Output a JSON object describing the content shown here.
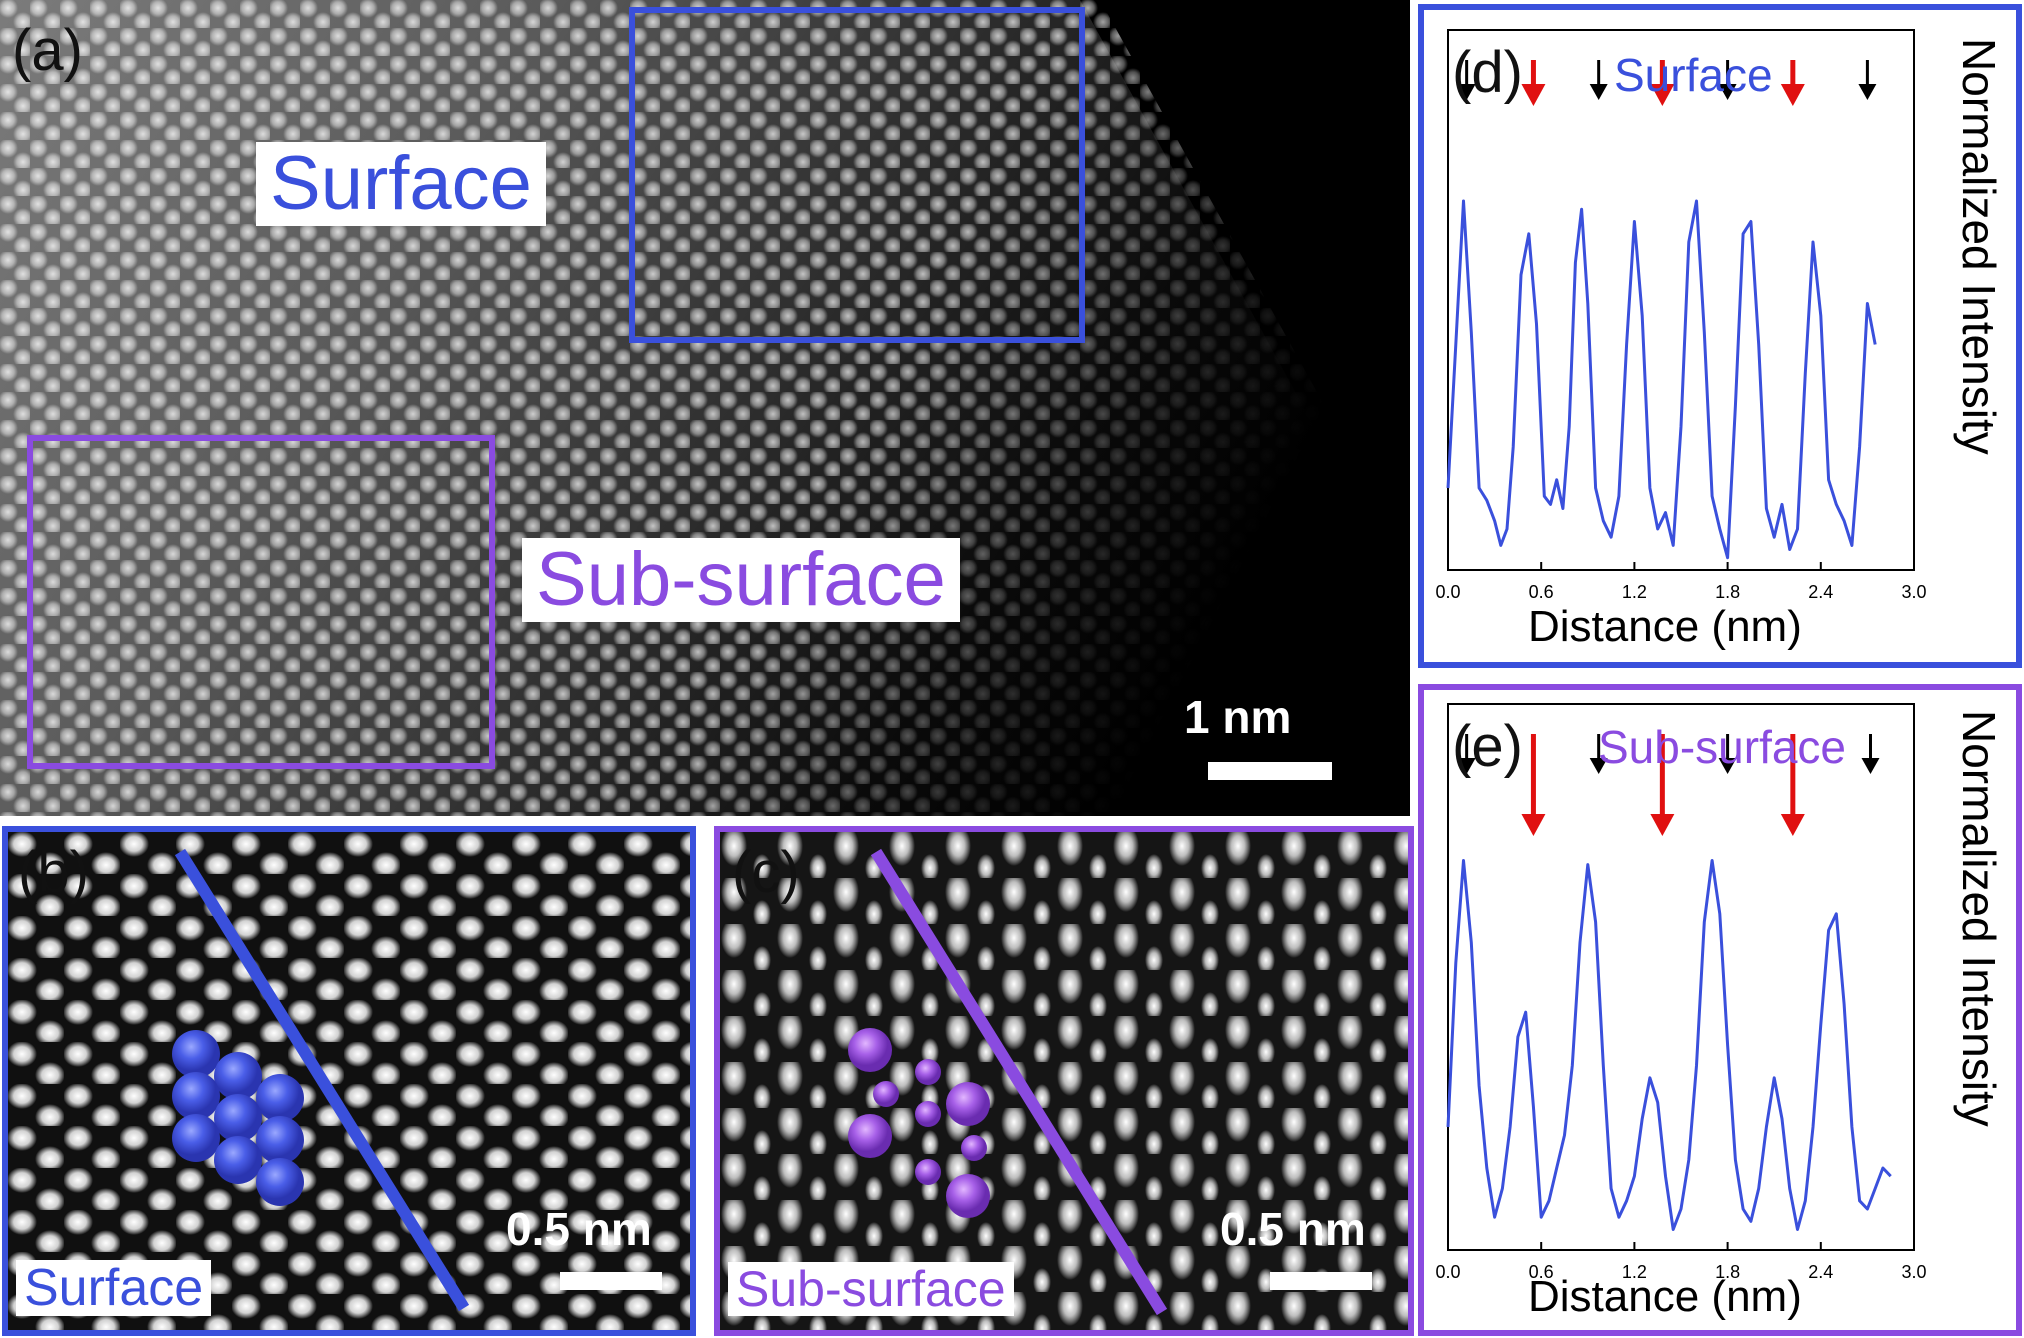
{
  "figure": {
    "panel_a": {
      "label": "(a)",
      "surface_tag": "Surface",
      "subsurface_tag": "Sub-surface",
      "scale": "1 nm"
    },
    "panel_b": {
      "label": "(b)",
      "caption": "Surface",
      "scale": "0.5 nm"
    },
    "panel_c": {
      "label": "(c)",
      "caption": "Sub-surface",
      "scale": "0.5 nm"
    },
    "colors": {
      "surface": "#3a50dc",
      "subsurface": "#8a4be0",
      "peak_arrow_major": "#000000",
      "peak_arrow_minor": "#e01010"
    }
  },
  "chart_data": [
    {
      "type": "line",
      "label": "(d)",
      "title": "Surface",
      "xlabel": "Distance (nm)",
      "ylabel": "Normalized Intensity",
      "xlim": [
        0.0,
        3.0
      ],
      "ylim": [
        0,
        1
      ],
      "xticks": [
        "0.0",
        "0.6",
        "1.2",
        "1.8",
        "2.4",
        "3.0"
      ],
      "series": [
        {
          "color": "#3a50dc",
          "x": [
            0.0,
            0.05,
            0.1,
            0.15,
            0.2,
            0.25,
            0.3,
            0.34,
            0.38,
            0.42,
            0.47,
            0.52,
            0.57,
            0.62,
            0.66,
            0.7,
            0.74,
            0.78,
            0.82,
            0.86,
            0.9,
            0.95,
            1.0,
            1.05,
            1.1,
            1.15,
            1.2,
            1.25,
            1.3,
            1.35,
            1.4,
            1.45,
            1.5,
            1.55,
            1.6,
            1.65,
            1.7,
            1.75,
            1.8,
            1.85,
            1.9,
            1.95,
            2.0,
            2.05,
            2.1,
            2.15,
            2.2,
            2.25,
            2.3,
            2.35,
            2.4,
            2.45,
            2.5,
            2.55,
            2.6,
            2.65,
            2.7,
            2.75
          ],
          "y": [
            0.2,
            0.55,
            0.9,
            0.58,
            0.2,
            0.17,
            0.12,
            0.06,
            0.1,
            0.3,
            0.72,
            0.82,
            0.6,
            0.18,
            0.16,
            0.22,
            0.15,
            0.35,
            0.75,
            0.88,
            0.65,
            0.2,
            0.12,
            0.08,
            0.18,
            0.55,
            0.85,
            0.62,
            0.2,
            0.1,
            0.14,
            0.06,
            0.35,
            0.8,
            0.9,
            0.58,
            0.18,
            0.1,
            0.03,
            0.4,
            0.82,
            0.85,
            0.55,
            0.15,
            0.08,
            0.16,
            0.05,
            0.1,
            0.48,
            0.8,
            0.62,
            0.22,
            0.16,
            0.12,
            0.06,
            0.3,
            0.65,
            0.55
          ]
        }
      ],
      "arrows": {
        "major_x": [
          0.12,
          0.97,
          1.8,
          2.7
        ],
        "minor_x": [
          0.55,
          1.38,
          2.22
        ]
      }
    },
    {
      "type": "line",
      "label": "(e)",
      "title": "Sub-surface",
      "xlabel": "Distance (nm)",
      "ylabel": "Normalized Intensity",
      "xlim": [
        0.0,
        3.0
      ],
      "ylim": [
        0,
        1
      ],
      "xticks": [
        "0.0",
        "0.6",
        "1.2",
        "1.8",
        "2.4",
        "3.0"
      ],
      "series": [
        {
          "color": "#3a50dc",
          "x": [
            0.0,
            0.05,
            0.1,
            0.15,
            0.2,
            0.25,
            0.3,
            0.35,
            0.4,
            0.45,
            0.5,
            0.55,
            0.6,
            0.65,
            0.7,
            0.75,
            0.8,
            0.85,
            0.9,
            0.95,
            1.0,
            1.05,
            1.1,
            1.15,
            1.2,
            1.25,
            1.3,
            1.35,
            1.4,
            1.45,
            1.5,
            1.55,
            1.6,
            1.65,
            1.7,
            1.75,
            1.8,
            1.85,
            1.9,
            1.95,
            2.0,
            2.05,
            2.1,
            2.15,
            2.2,
            2.25,
            2.3,
            2.35,
            2.4,
            2.45,
            2.5,
            2.55,
            2.6,
            2.65,
            2.7,
            2.75,
            2.8,
            2.85
          ],
          "y": [
            0.3,
            0.7,
            0.95,
            0.75,
            0.4,
            0.2,
            0.08,
            0.15,
            0.3,
            0.52,
            0.58,
            0.35,
            0.08,
            0.12,
            0.2,
            0.28,
            0.45,
            0.75,
            0.94,
            0.8,
            0.45,
            0.15,
            0.08,
            0.12,
            0.18,
            0.32,
            0.42,
            0.36,
            0.18,
            0.05,
            0.1,
            0.22,
            0.45,
            0.8,
            0.95,
            0.82,
            0.5,
            0.22,
            0.1,
            0.07,
            0.15,
            0.3,
            0.42,
            0.32,
            0.15,
            0.05,
            0.12,
            0.3,
            0.55,
            0.78,
            0.82,
            0.6,
            0.3,
            0.12,
            0.1,
            0.15,
            0.2,
            0.18
          ]
        }
      ],
      "arrows": {
        "major_x": [
          0.12,
          0.97,
          1.8,
          2.72
        ],
        "minor_x": [
          0.55,
          1.38,
          2.22
        ]
      }
    }
  ]
}
